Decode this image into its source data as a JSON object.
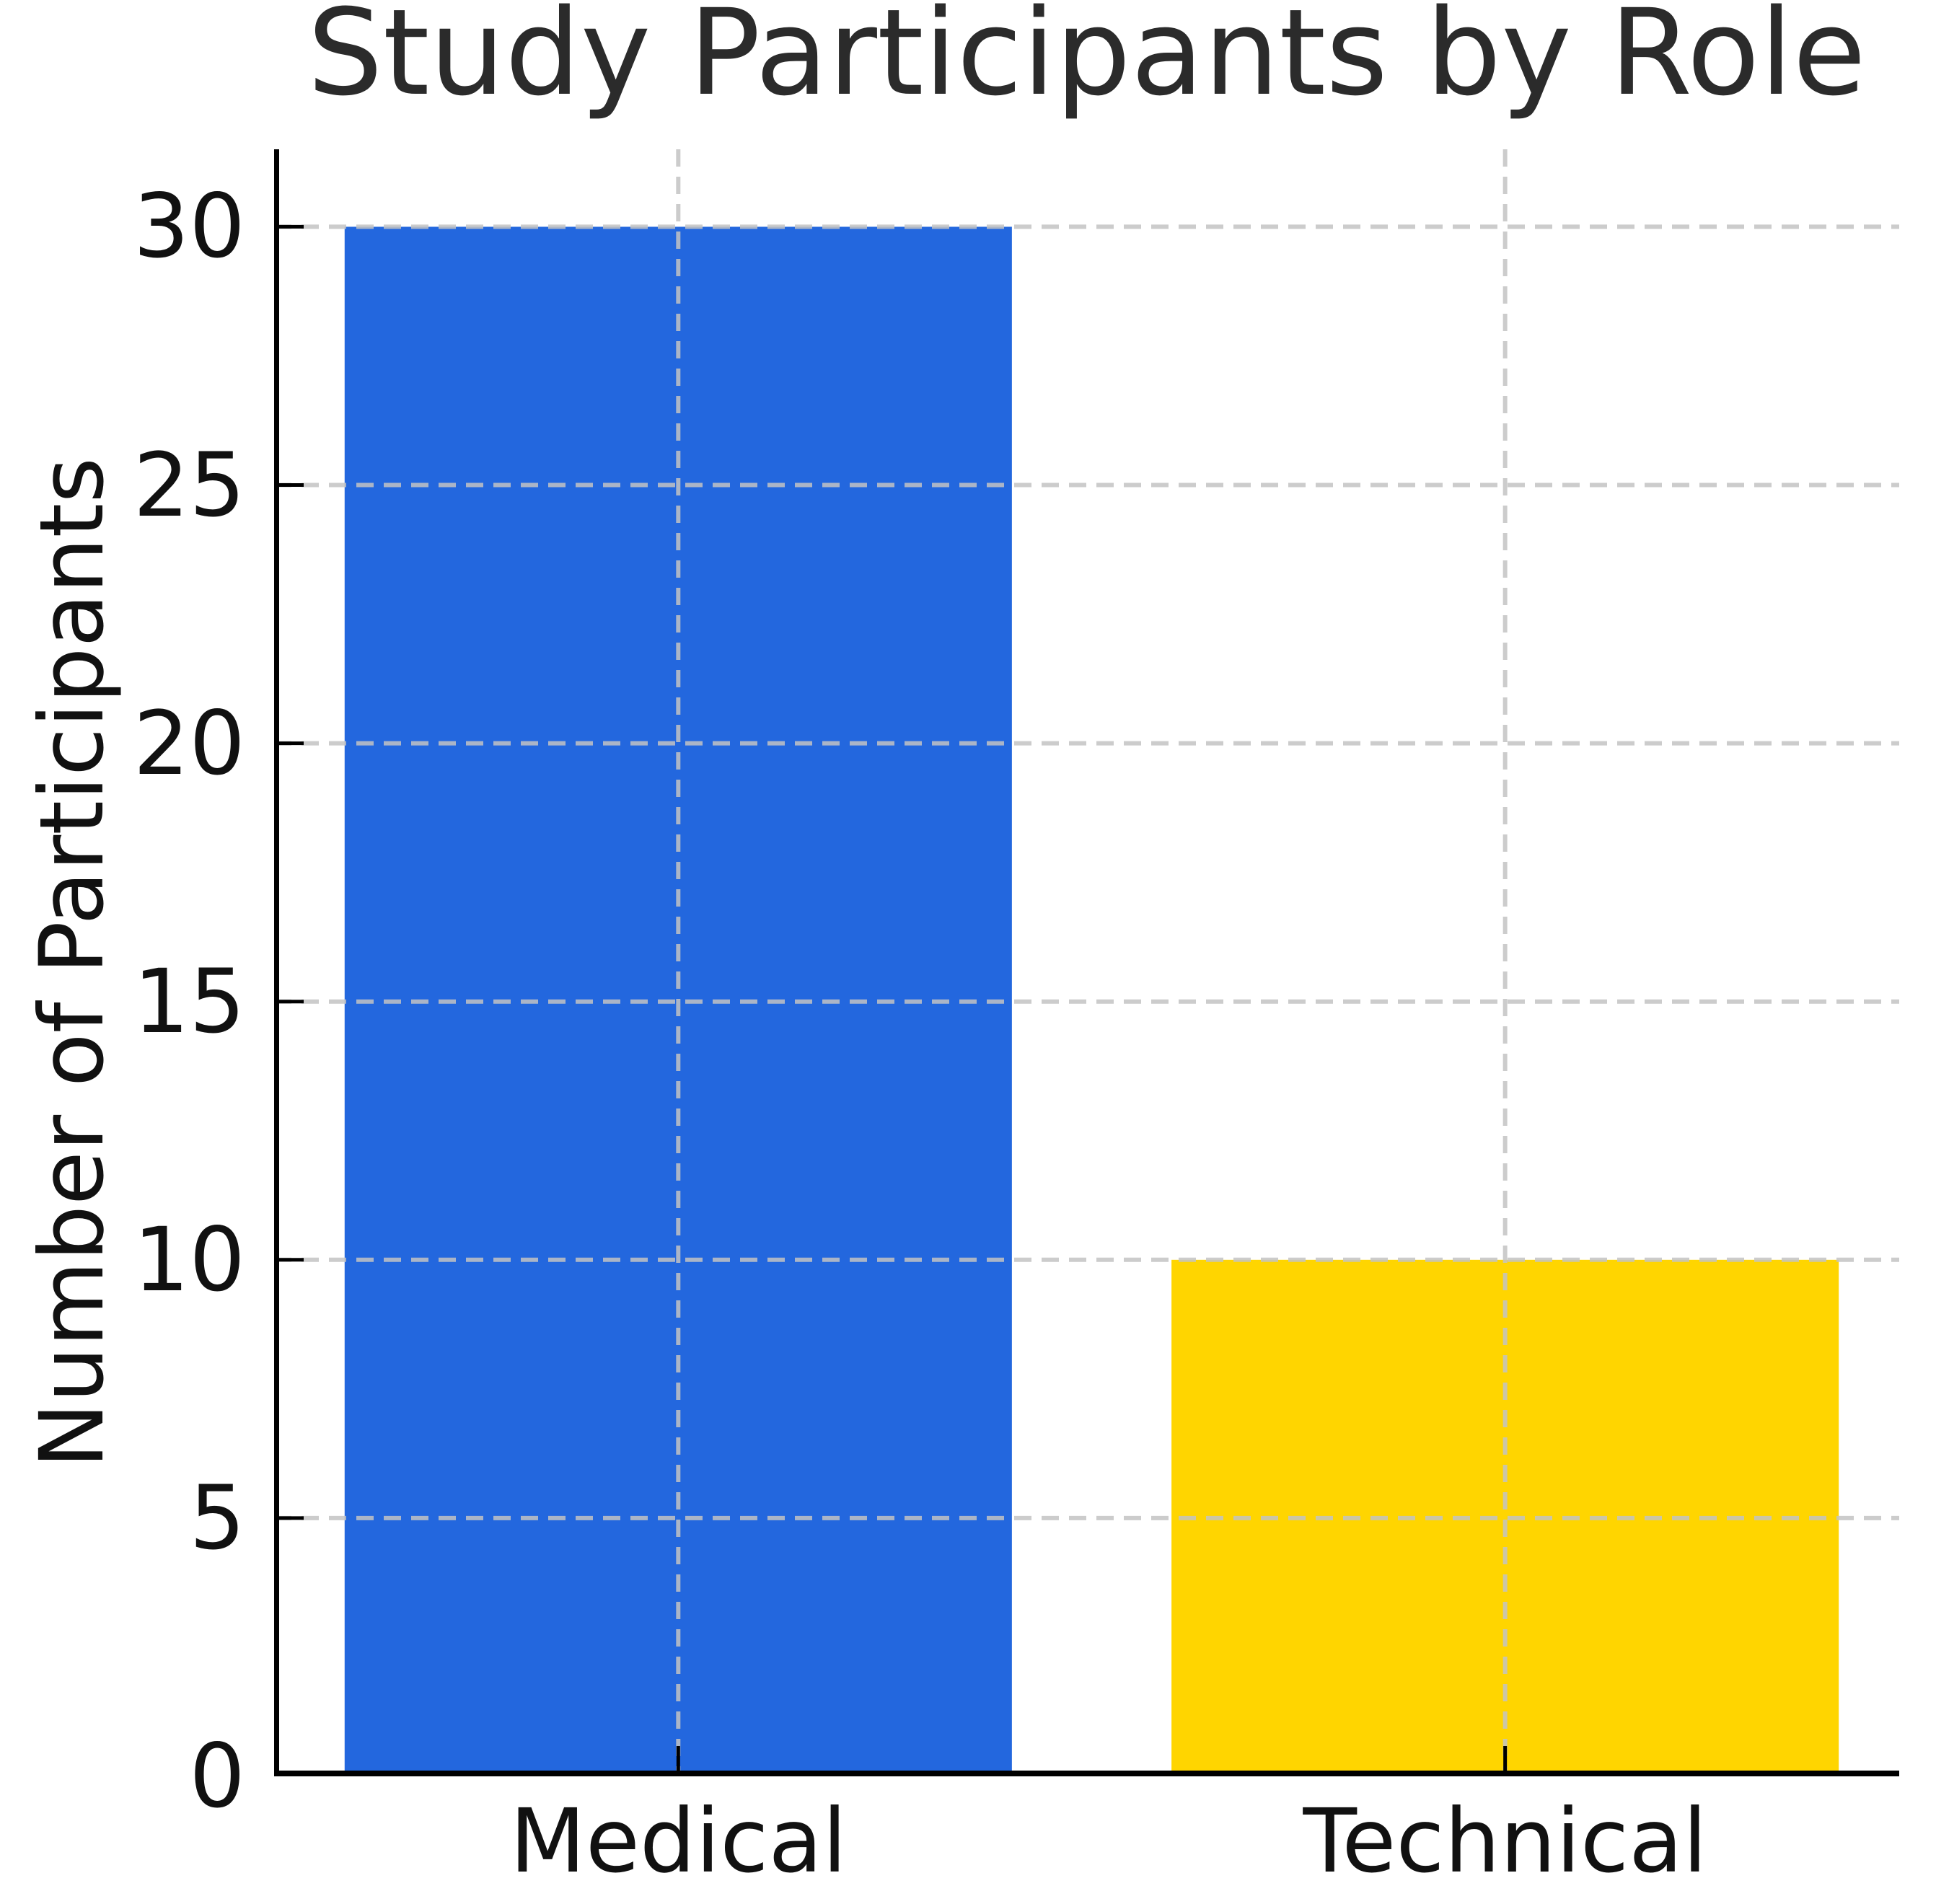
{
  "chart_data": {
    "type": "bar",
    "title": "Study Participants by Role",
    "xlabel": "",
    "ylabel": "Number of Participants",
    "categories": [
      "Medical",
      "Technical"
    ],
    "values": [
      30,
      10
    ],
    "bar_colors": [
      "#2367de",
      "#ffd500"
    ],
    "yticks": [
      0,
      5,
      10,
      15,
      20,
      25,
      30
    ],
    "ylim": [
      0,
      31.5
    ],
    "grid": {
      "style": "dashed",
      "axes": "both",
      "above_bars": true
    },
    "legend": "none",
    "colors": {
      "grid": "#c3c3c3",
      "axis": "#000000",
      "title_text": "#2b2b2b",
      "tick_text": "#111111"
    }
  }
}
